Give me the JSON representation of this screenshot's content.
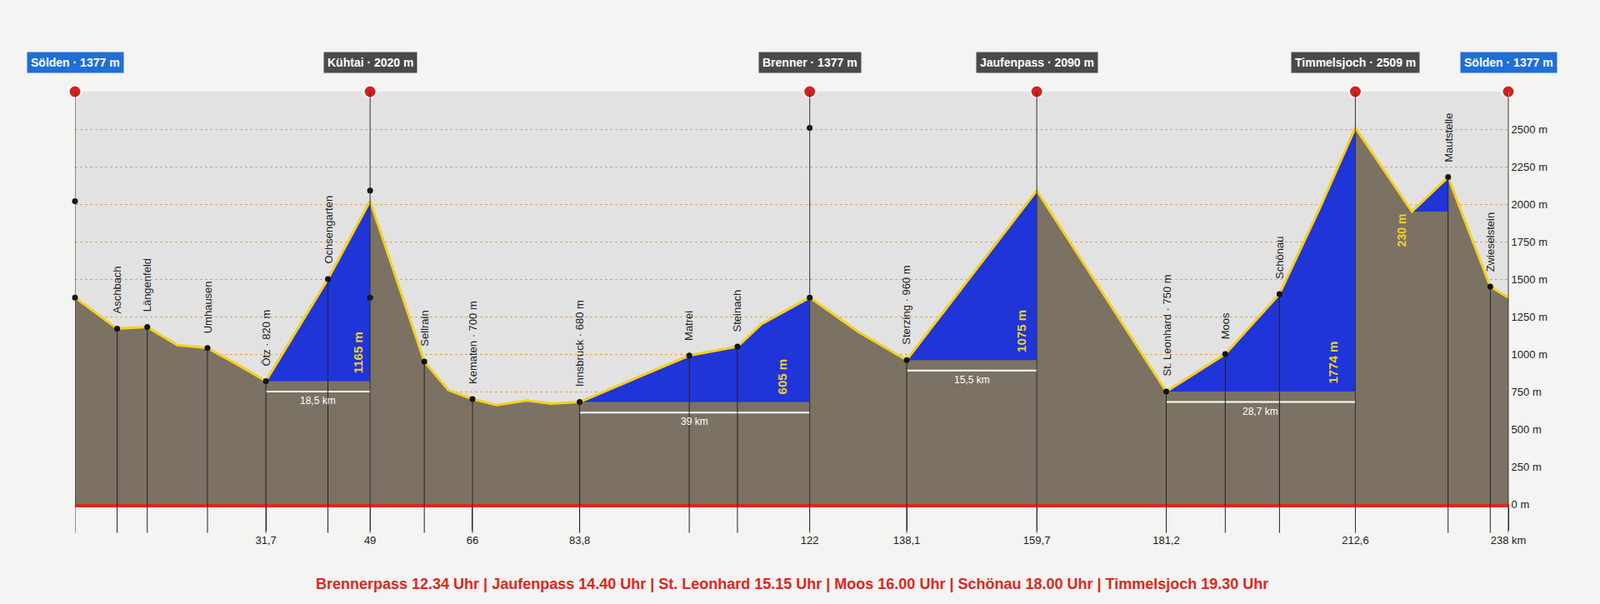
{
  "chart_data": {
    "type": "area",
    "color": "#f5d020",
    "x": [
      0,
      7,
      12,
      17,
      22,
      27,
      31.7,
      42,
      49,
      58,
      62,
      66,
      70,
      75,
      79,
      83.8,
      102,
      110,
      114,
      122,
      130,
      138.1,
      159.7,
      170,
      181.2,
      191,
      200,
      207,
      212.6,
      222,
      228,
      235,
      238
    ],
    "values": [
      1377,
      1170,
      1180,
      1060,
      1040,
      930,
      820,
      1500,
      2020,
      950,
      760,
      700,
      660,
      690,
      670,
      680,
      990,
      1050,
      1200,
      1377,
      1150,
      960,
      2090,
      1450,
      750,
      1000,
      1400,
      2000,
      2509,
      1950,
      2180,
      1450,
      1377
    ],
    "xlim": [
      0,
      238
    ],
    "ylim": [
      0,
      2750
    ],
    "xticks": [
      {
        "value": 31.7,
        "label": "31,7"
      },
      49,
      66,
      {
        "value": 83.8,
        "label": "83,8"
      },
      122,
      {
        "value": 138.1,
        "label": "138,1"
      },
      {
        "value": 159.7,
        "label": "159,7"
      },
      {
        "value": 181.2,
        "label": "181,2"
      },
      {
        "value": 212.6,
        "label": "212,6"
      },
      {
        "value": 238,
        "label": "238 km"
      }
    ],
    "yticks": [
      {
        "value": 0,
        "label": "0 m"
      },
      {
        "value": 250,
        "label": "250 m"
      },
      {
        "value": 500,
        "label": "500 m"
      },
      {
        "value": 750,
        "label": "750 m"
      },
      {
        "value": 1000,
        "label": "1000 m"
      },
      {
        "value": 1250,
        "label": "1250 m"
      },
      {
        "value": 1500,
        "label": "1500 m"
      },
      {
        "value": 1750,
        "label": "1750 m"
      },
      {
        "value": 2000,
        "label": "2000 m"
      },
      {
        "value": 2250,
        "label": "2250 m"
      },
      {
        "value": 2500,
        "label": "2500 m"
      }
    ],
    "grid": true,
    "summits": [
      {
        "label": "Sölden · 1377 m",
        "x": 0,
        "color": "#1f6fd6"
      },
      {
        "label": "Kühtai · 2020 m",
        "x": 49,
        "color": "#4a4a4a"
      },
      {
        "label": "Brenner · 1377 m",
        "x": 122,
        "color": "#4a4a4a"
      },
      {
        "label": "Jaufenpass · 2090 m",
        "x": 159.7,
        "color": "#4a4a4a"
      },
      {
        "label": "Timmelsjoch · 2509 m",
        "x": 212.6,
        "color": "#4a4a4a"
      },
      {
        "label": "Sölden · 1377 m",
        "x": 238,
        "color": "#1f6fd6"
      }
    ],
    "places": [
      {
        "label": "Aschbach",
        "x": 7
      },
      {
        "label": "Längenfeld",
        "x": 12
      },
      {
        "label": "Umhausen",
        "x": 22
      },
      {
        "label": "Ötz · 820 m",
        "x": 31.7
      },
      {
        "label": "Ochsengarten",
        "x": 42
      },
      {
        "label": "Sellrain",
        "x": 58
      },
      {
        "label": "Kematen · 700 m",
        "x": 66
      },
      {
        "label": "Innsbruck · 680 m",
        "x": 83.8
      },
      {
        "label": "Matrei",
        "x": 102
      },
      {
        "label": "Steinach",
        "x": 110
      },
      {
        "label": "Sterzing · 960 m",
        "x": 138.1
      },
      {
        "label": "St. Leonhard · 750 m",
        "x": 181.2
      },
      {
        "label": "Moos",
        "x": 191
      },
      {
        "label": "Schönau",
        "x": 200
      },
      {
        "label": "Mautstelle",
        "x": 228
      },
      {
        "label": "Zwieselstein",
        "x": 235
      }
    ],
    "climbs": [
      {
        "from": 31.7,
        "to": 49,
        "label": "1165 m",
        "distance": "18,5 km",
        "color": "#1f35d8"
      },
      {
        "from": 83.8,
        "to": 122,
        "label": "605 m",
        "distance": "39 km",
        "color": "#1f35d8"
      },
      {
        "from": 138.1,
        "to": 159.7,
        "label": "1075 m",
        "distance": "15,5 km",
        "color": "#1f35d8"
      },
      {
        "from": 181.2,
        "to": 212.6,
        "label": "1774 m",
        "distance": "28,7 km",
        "color": "#1f35d8"
      },
      {
        "from": 222,
        "to": 228,
        "label": "230 m",
        "color": "#1f35d8"
      }
    ],
    "footer": "Brennerpass 12.34 Uhr | Jaufenpass 14.40 Uhr | St. Leonhard 15.15 Uhr | Moos 16.00 Uhr | Schönau 18.00 Uhr | Timmelsjoch 19.30 Uhr"
  }
}
